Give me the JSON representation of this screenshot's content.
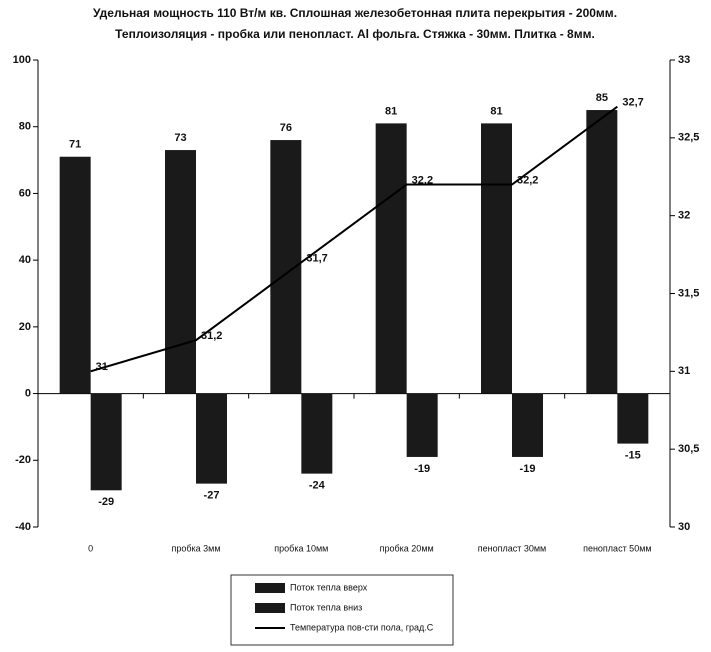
{
  "chart_data": {
    "type": "bar",
    "title": [
      "Удельная мощность 110 Вт/м кв. Сплошная железобетонная плита перекрытия - 200мм.",
      "Теплоизоляция - пробка или пенопласт. Al фольга. Стяжка - 30мм. Плитка - 8мм."
    ],
    "categories": [
      "0",
      "пробка 3мм",
      "пробка 10мм",
      "пробка 20мм",
      "пенопласт 30мм",
      "пенопласт 50мм"
    ],
    "series": [
      {
        "name": "Поток тепла вверх",
        "color": "#1a1a1a",
        "values": [
          71,
          73,
          76,
          81,
          81,
          85
        ]
      },
      {
        "name": "Поток тепла вниз",
        "color": "#1a1a1a",
        "values": [
          -29,
          -27,
          -24,
          -19,
          -19,
          -15
        ]
      },
      {
        "name": "Температура пов-сти пола, град.С",
        "color": "#000000",
        "type": "line",
        "axis": "y2",
        "values": [
          31,
          31.2,
          31.7,
          32.2,
          32.2,
          32.7
        ],
        "value_labels": [
          "31",
          "31,2",
          "31,7",
          "32,2",
          "32,2",
          "32,7"
        ]
      }
    ],
    "ylim": [
      -40,
      100
    ],
    "yticks": [
      -40,
      -20,
      0,
      20,
      40,
      60,
      80,
      100
    ],
    "y2lim": [
      30,
      33
    ],
    "y2ticks": [
      30,
      {
        "value": 30.5,
        "label": "30,5"
      },
      31,
      {
        "value": 31.5,
        "label": "31,5"
      },
      32,
      {
        "value": 32.5,
        "label": "32,5"
      },
      33
    ],
    "grid": false,
    "legend": "bottom"
  }
}
